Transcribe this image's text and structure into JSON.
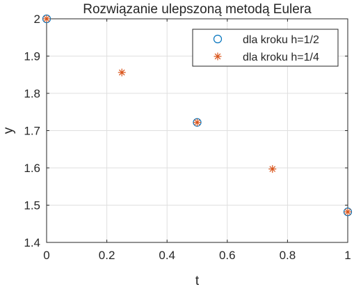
{
  "chart_data": {
    "type": "scatter",
    "title": "Rozwiązanie ulepszoną metodą Eulera",
    "xlabel": "t",
    "ylabel": "y",
    "xlim": [
      0,
      1
    ],
    "ylim": [
      1.4,
      2
    ],
    "xticks": [
      0,
      0.2,
      0.4,
      0.6,
      0.8,
      1
    ],
    "xtick_labels": [
      "0",
      "0.2",
      "0.4",
      "0.6",
      "0.8",
      "1"
    ],
    "yticks": [
      1.4,
      1.5,
      1.6,
      1.7,
      1.8,
      1.9,
      2
    ],
    "ytick_labels": [
      "1.4",
      "1.5",
      "1.6",
      "1.7",
      "1.8",
      "1.9",
      "2"
    ],
    "grid": true,
    "legend_position": "top-right",
    "series": [
      {
        "name": "dla kroku h=1/2",
        "marker": "circle",
        "color": "#0072BD",
        "x": [
          0,
          0.5,
          1
        ],
        "y": [
          2.0,
          1.722,
          1.482
        ]
      },
      {
        "name": "dla kroku h=1/4",
        "marker": "asterisk",
        "color": "#D95319",
        "x": [
          0,
          0.25,
          0.5,
          0.75,
          1
        ],
        "y": [
          2.0,
          1.856,
          1.722,
          1.597,
          1.482
        ]
      }
    ]
  }
}
